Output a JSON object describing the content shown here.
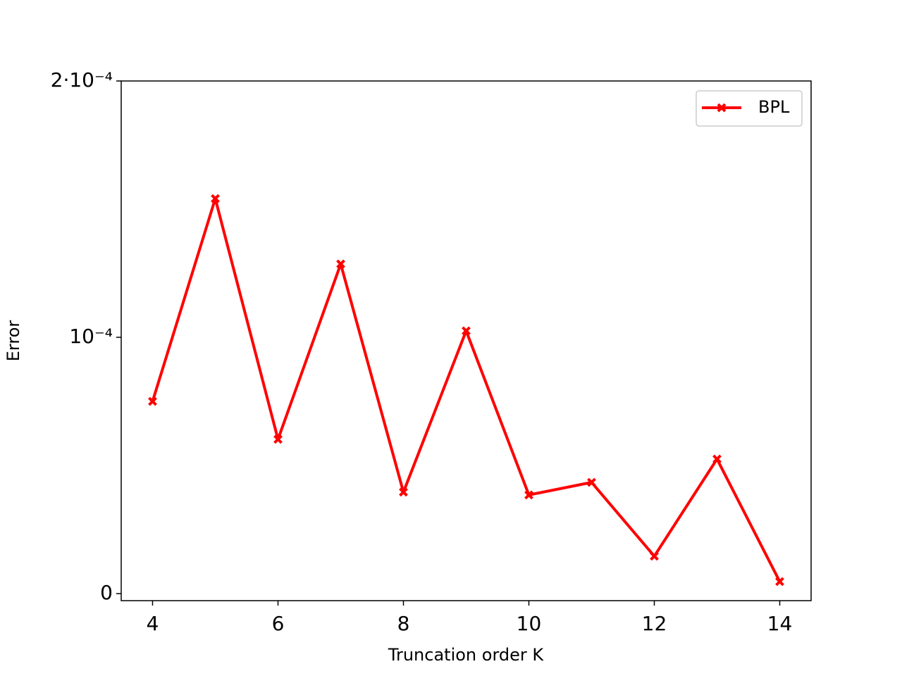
{
  "chart_data": {
    "type": "line",
    "x_label": "Truncation order K",
    "y_label": "Error",
    "x": [
      4,
      5,
      6,
      7,
      8,
      9,
      10,
      11,
      12,
      13,
      14
    ],
    "series": [
      {
        "name": "BPL",
        "color": "#ff0000",
        "values": [
          7.5e-05,
          0.0001541,
          6.02e-05,
          0.0001286,
          3.96e-05,
          0.0001025,
          3.85e-05,
          4.34e-05,
          1.46e-05,
          5.25e-05,
          4.7e-06
        ]
      }
    ],
    "xlim": [
      3.5,
      14.5
    ],
    "ylim": [
      -2.75e-06,
      0.0002
    ],
    "xticks": [
      4,
      6,
      8,
      10,
      12,
      14
    ],
    "yticks": [
      0,
      {
        "value": 0.0001,
        "label": "10⁻⁴"
      },
      {
        "value": 0.0002,
        "label": "2·10⁻⁴"
      }
    ],
    "grid": false,
    "legend": "upper right"
  }
}
